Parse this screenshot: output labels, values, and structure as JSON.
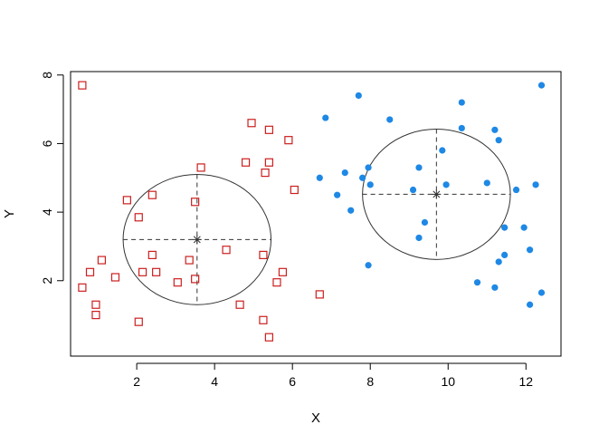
{
  "chart_data": {
    "type": "scatter",
    "title": "",
    "xlabel": "X",
    "ylabel": "Y",
    "xlim": [
      0.3,
      12.9
    ],
    "ylim": [
      -0.2,
      8.1
    ],
    "xticks": [
      2,
      4,
      6,
      8,
      10,
      12
    ],
    "yticks": [
      2,
      4,
      6,
      8
    ],
    "xtick_labels": [
      "2",
      "4",
      "6",
      "8",
      "10",
      "12"
    ],
    "ytick_labels": [
      "2",
      "4",
      "6",
      "8"
    ],
    "grid": false,
    "legend": "none",
    "colors": {
      "series_1": "#CC1F1F",
      "series_2": "#1E88E5",
      "annotation": "#333333"
    },
    "series": [
      {
        "marker": "open-square",
        "color": "#CC1F1F",
        "points": [
          [
            0.6,
            7.7
          ],
          [
            0.6,
            1.8
          ],
          [
            0.8,
            2.25
          ],
          [
            0.95,
            1.3
          ],
          [
            0.95,
            1.0
          ],
          [
            1.1,
            2.6
          ],
          [
            1.45,
            2.1
          ],
          [
            1.75,
            4.35
          ],
          [
            2.05,
            3.85
          ],
          [
            2.05,
            0.8
          ],
          [
            2.15,
            2.25
          ],
          [
            2.4,
            4.5
          ],
          [
            2.4,
            2.75
          ],
          [
            2.5,
            2.25
          ],
          [
            3.05,
            1.95
          ],
          [
            3.35,
            2.6
          ],
          [
            3.5,
            4.3
          ],
          [
            3.5,
            2.05
          ],
          [
            3.65,
            5.3
          ],
          [
            4.3,
            2.9
          ],
          [
            4.65,
            1.3
          ],
          [
            4.8,
            5.45
          ],
          [
            4.95,
            6.6
          ],
          [
            5.25,
            2.75
          ],
          [
            5.25,
            0.85
          ],
          [
            5.3,
            5.15
          ],
          [
            5.4,
            6.4
          ],
          [
            5.4,
            5.45
          ],
          [
            5.4,
            0.35
          ],
          [
            5.6,
            1.95
          ],
          [
            5.75,
            2.25
          ],
          [
            5.9,
            6.1
          ],
          [
            6.05,
            4.65
          ],
          [
            6.7,
            1.6
          ]
        ]
      },
      {
        "marker": "filled-circle",
        "color": "#1E88E5",
        "points": [
          [
            6.7,
            5.0
          ],
          [
            6.85,
            6.75
          ],
          [
            7.15,
            4.5
          ],
          [
            7.35,
            5.15
          ],
          [
            7.5,
            4.05
          ],
          [
            7.7,
            7.4
          ],
          [
            7.8,
            5.0
          ],
          [
            7.95,
            5.3
          ],
          [
            7.95,
            2.45
          ],
          [
            8.0,
            4.8
          ],
          [
            8.5,
            6.7
          ],
          [
            9.1,
            4.65
          ],
          [
            9.25,
            5.3
          ],
          [
            9.25,
            3.25
          ],
          [
            9.4,
            3.7
          ],
          [
            9.85,
            5.8
          ],
          [
            9.95,
            4.8
          ],
          [
            10.35,
            7.2
          ],
          [
            10.35,
            6.45
          ],
          [
            10.75,
            1.95
          ],
          [
            11.0,
            4.85
          ],
          [
            11.2,
            6.4
          ],
          [
            11.2,
            1.8
          ],
          [
            11.3,
            6.1
          ],
          [
            11.3,
            2.55
          ],
          [
            11.45,
            3.55
          ],
          [
            11.45,
            2.75
          ],
          [
            11.75,
            4.65
          ],
          [
            11.95,
            3.55
          ],
          [
            12.1,
            2.9
          ],
          [
            12.1,
            1.3
          ],
          [
            12.25,
            4.8
          ],
          [
            12.4,
            7.7
          ],
          [
            12.4,
            1.65
          ]
        ]
      }
    ],
    "centroids": [
      {
        "x": 3.55,
        "y": 3.2,
        "rx": 1.9,
        "ry": 1.9
      },
      {
        "x": 9.7,
        "y": 4.52,
        "rx": 1.9,
        "ry": 1.9
      }
    ]
  }
}
